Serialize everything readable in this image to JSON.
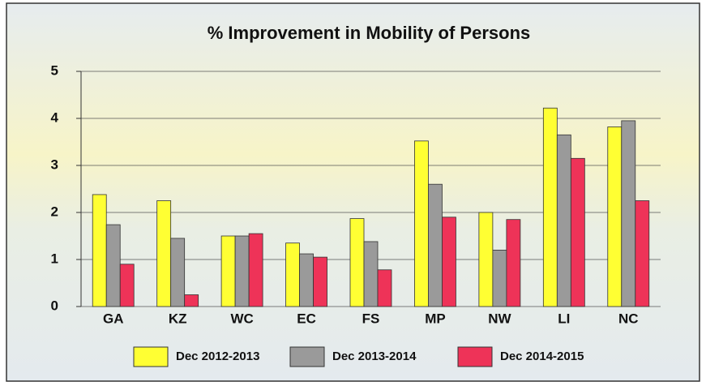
{
  "chart_data": {
    "type": "bar",
    "title": "% Improvement in Mobility of Persons",
    "categories": [
      "GA",
      "KZ",
      "WC",
      "EC",
      "FS",
      "MP",
      "NW",
      "LI",
      "NC"
    ],
    "series": [
      {
        "name": "Dec 2012-2013",
        "color": "#ffff33",
        "values": [
          2.38,
          2.25,
          1.5,
          1.35,
          1.87,
          3.52,
          2.0,
          4.22,
          3.82
        ]
      },
      {
        "name": "Dec 2013-2014",
        "color": "#9a9a9a",
        "values": [
          1.74,
          1.45,
          1.5,
          1.12,
          1.38,
          2.6,
          1.2,
          3.65,
          3.95
        ]
      },
      {
        "name": "Dec 2014-2015",
        "color": "#ee3358",
        "values": [
          0.9,
          0.25,
          1.55,
          1.05,
          0.78,
          1.9,
          1.85,
          3.15,
          2.25
        ]
      }
    ],
    "ylim": [
      0,
      5
    ],
    "yticks": [
      0,
      1,
      2,
      3,
      4,
      5
    ],
    "grid": true,
    "legend": "bottom"
  }
}
